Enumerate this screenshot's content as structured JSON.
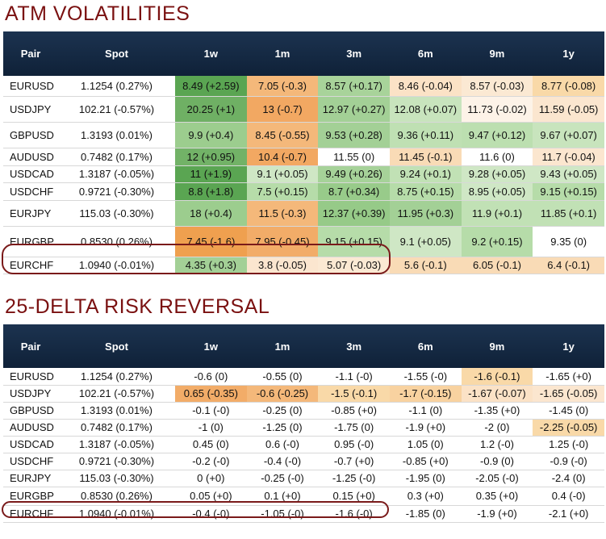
{
  "atm": {
    "title": "ATM VOLATILITIES",
    "headers": [
      "Pair",
      "Spot",
      "1w",
      "1m",
      "3m",
      "6m",
      "9m",
      "1y"
    ],
    "rows": [
      {
        "pair": "EURUSD",
        "spot": "1.1254 (0.27%)",
        "cells": [
          "8.49 (+2.59)",
          "7.05 (-0.3)",
          "8.57 (+0.17)",
          "8.46 (-0.04)",
          "8.57 (-0.03)",
          "8.77 (-0.08)"
        ],
        "colors": [
          "#5aa552",
          "#f4b87a",
          "#a8d39a",
          "#fbe2c6",
          "#fbe9d3",
          "#f9d9a8"
        ]
      },
      {
        "pair": "USDJPY",
        "spot": "102.21 (-0.57%)",
        "cells": [
          "20.25 (+1)",
          "13 (-0.7)",
          "12.97 (+0.27)",
          "12.08 (+0.07)",
          "11.73 (-0.02)",
          "11.59 (-0.05)"
        ],
        "colors": [
          "#6fb064",
          "#f2a862",
          "#a3d096",
          "#c8e4bd",
          "#fdf3e8",
          "#fbe6cf"
        ]
      },
      {
        "pair": "GBPUSD",
        "spot": "1.3193 (0.01%)",
        "cells": [
          "9.9 (+0.4)",
          "8.45 (-0.55)",
          "9.53 (+0.28)",
          "9.36 (+0.11)",
          "9.47 (+0.12)",
          "9.67 (+0.07)"
        ],
        "colors": [
          "#9ccd8e",
          "#f4b87a",
          "#a3d096",
          "#bfe0b3",
          "#bcdfb0",
          "#c8e4bd"
        ]
      },
      {
        "pair": "AUDUSD",
        "spot": "0.7482 (0.17%)",
        "cells": [
          "12 (+0.95)",
          "10.4 (-0.7)",
          "11.55 (0)",
          "11.45 (-0.1)",
          "11.6 (0)",
          "11.7 (-0.04)"
        ],
        "colors": [
          "#72b267",
          "#f2a862",
          "#ffffff",
          "#f9dbb6",
          "#ffffff",
          "#fbe6cf"
        ]
      },
      {
        "pair": "USDCAD",
        "spot": "1.3187 (-0.05%)",
        "cells": [
          "11 (+1.9)",
          "9.1 (+0.05)",
          "9.49 (+0.26)",
          "9.24 (+0.1)",
          "9.28 (+0.05)",
          "9.43 (+0.05)"
        ],
        "colors": [
          "#5aa552",
          "#cfe7c5",
          "#a6d299",
          "#c1e1b5",
          "#cfe7c5",
          "#cfe7c5"
        ]
      },
      {
        "pair": "USDCHF",
        "spot": "0.9721 (-0.30%)",
        "cells": [
          "8.8 (+1.8)",
          "7.5 (+0.15)",
          "8.7 (+0.34)",
          "8.75 (+0.15)",
          "8.95 (+0.05)",
          "9.15 (+0.15)"
        ],
        "colors": [
          "#5aa552",
          "#b6dca9",
          "#98cb8a",
          "#b6dca9",
          "#cfe7c5",
          "#b6dca9"
        ]
      },
      {
        "pair": "EURJPY",
        "spot": "115.03 (-0.30%)",
        "cells": [
          "18 (+0.4)",
          "11.5 (-0.3)",
          "12.37 (+0.39)",
          "11.95 (+0.3)",
          "11.9 (+0.1)",
          "11.85 (+0.1)"
        ],
        "colors": [
          "#9ccd8e",
          "#f4b87a",
          "#96ca88",
          "#a3d096",
          "#c1e1b5",
          "#c1e1b5"
        ]
      },
      {
        "pair": "EURGBP",
        "spot": "0.8530 (0.26%)",
        "cells": [
          "7.45 (-1.6)",
          "7.95 (-0.45)",
          "9.15 (+0.15)",
          "9.1 (+0.05)",
          "9.2 (+0.15)",
          "9.35 (0)"
        ],
        "colors": [
          "#efa04f",
          "#f2ac68",
          "#b6dca9",
          "#cfe7c5",
          "#b6dca9",
          "#ffffff"
        ]
      },
      {
        "pair": "EURCHF",
        "spot": "1.0940 (-0.01%)",
        "cells": [
          "4.35 (+0.3)",
          "3.8 (-0.05)",
          "5.07 (-0.03)",
          "5.6 (-0.1)",
          "6.05 (-0.1)",
          "6.4 (-0.1)"
        ],
        "colors": [
          "#a3d096",
          "#fbe6cf",
          "#fbe9d3",
          "#f9dbb6",
          "#f9dbb6",
          "#f9dbb6"
        ]
      }
    ]
  },
  "rr": {
    "title": "25-DELTA RISK REVERSAL",
    "headers": [
      "Pair",
      "Spot",
      "1w",
      "1m",
      "3m",
      "6m",
      "9m",
      "1y"
    ],
    "rows": [
      {
        "pair": "EURUSD",
        "spot": "1.1254 (0.27%)",
        "cells": [
          "-0.6 (0)",
          "-0.55 (0)",
          "-1.1 (-0)",
          "-1.55 (-0)",
          "-1.6 (-0.1)",
          "-1.65 (+0)"
        ],
        "colors": [
          "#ffffff",
          "#ffffff",
          "#ffffff",
          "#ffffff",
          "#f9d9a8",
          "#ffffff"
        ]
      },
      {
        "pair": "USDJPY",
        "spot": "102.21 (-0.57%)",
        "cells": [
          "0.65 (-0.35)",
          "-0.6 (-0.25)",
          "-1.5 (-0.1)",
          "-1.7 (-0.15)",
          "-1.67 (-0.07)",
          "-1.65 (-0.05)"
        ],
        "colors": [
          "#f2ac68",
          "#f4b87a",
          "#f9d9a8",
          "#f8d2a0",
          "#fbe2c6",
          "#fbe6cf"
        ]
      },
      {
        "pair": "GBPUSD",
        "spot": "1.3193 (0.01%)",
        "cells": [
          "-0.1 (-0)",
          "-0.25 (0)",
          "-0.85 (+0)",
          "-1.1 (0)",
          "-1.35 (+0)",
          "-1.45 (0)"
        ],
        "colors": [
          "#ffffff",
          "#ffffff",
          "#ffffff",
          "#ffffff",
          "#ffffff",
          "#ffffff"
        ]
      },
      {
        "pair": "AUDUSD",
        "spot": "0.7482 (0.17%)",
        "cells": [
          "-1 (0)",
          "-1.25 (0)",
          "-1.75 (0)",
          "-1.9 (+0)",
          "-2 (0)",
          "-2.25 (-0.05)"
        ],
        "colors": [
          "#ffffff",
          "#ffffff",
          "#ffffff",
          "#ffffff",
          "#ffffff",
          "#f9d9a8"
        ]
      },
      {
        "pair": "USDCAD",
        "spot": "1.3187 (-0.05%)",
        "cells": [
          "0.45 (0)",
          "0.6 (-0)",
          "0.95 (-0)",
          "1.05 (0)",
          "1.2 (-0)",
          "1.25 (-0)"
        ],
        "colors": [
          "#ffffff",
          "#ffffff",
          "#ffffff",
          "#ffffff",
          "#ffffff",
          "#ffffff"
        ]
      },
      {
        "pair": "USDCHF",
        "spot": "0.9721 (-0.30%)",
        "cells": [
          "-0.2 (-0)",
          "-0.4 (-0)",
          "-0.7 (+0)",
          "-0.85 (+0)",
          "-0.9 (0)",
          "-0.9 (-0)"
        ],
        "colors": [
          "#ffffff",
          "#ffffff",
          "#ffffff",
          "#ffffff",
          "#ffffff",
          "#ffffff"
        ]
      },
      {
        "pair": "EURJPY",
        "spot": "115.03 (-0.30%)",
        "cells": [
          "0 (+0)",
          "-0.25 (-0)",
          "-1.25 (-0)",
          "-1.95 (0)",
          "-2.05 (-0)",
          "-2.4 (0)"
        ],
        "colors": [
          "#ffffff",
          "#ffffff",
          "#ffffff",
          "#ffffff",
          "#ffffff",
          "#ffffff"
        ]
      },
      {
        "pair": "EURGBP",
        "spot": "0.8530 (0.26%)",
        "cells": [
          "0.05 (+0)",
          "0.1 (+0)",
          "0.15 (+0)",
          "0.3 (+0)",
          "0.35 (+0)",
          "0.4 (-0)"
        ],
        "colors": [
          "#ffffff",
          "#ffffff",
          "#ffffff",
          "#ffffff",
          "#ffffff",
          "#ffffff"
        ]
      },
      {
        "pair": "EURCHF",
        "spot": "1.0940 (-0.01%)",
        "cells": [
          "-0.4 (-0)",
          "-1.05 (-0)",
          "-1.6 (-0)",
          "-1.85 (0)",
          "-1.9 (+0)",
          "-2.1 (+0)"
        ],
        "colors": [
          "#ffffff",
          "#ffffff",
          "#ffffff",
          "#ffffff",
          "#ffffff",
          "#ffffff"
        ]
      }
    ]
  }
}
